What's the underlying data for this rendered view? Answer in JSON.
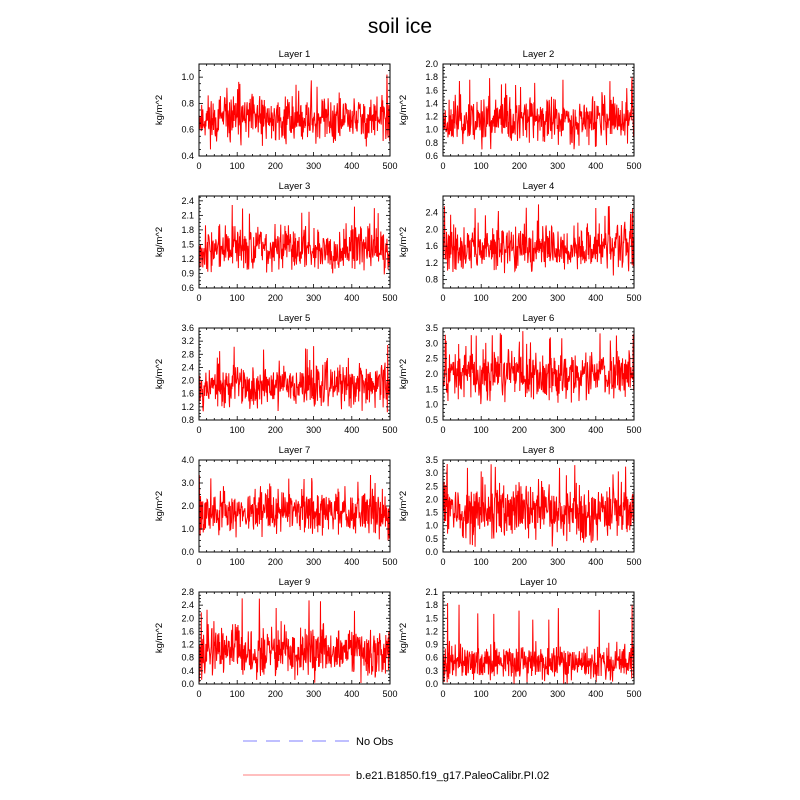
{
  "title": "soil ice",
  "legend": {
    "items": [
      {
        "label": "No Obs",
        "color": "#9999ff",
        "style": "dashed"
      },
      {
        "label": "b.e21.B1850.f19_g17.PaleoCalibr.PI.02",
        "color": "#ff9999",
        "style": "solid"
      }
    ]
  },
  "chart_data": [
    {
      "type": "line",
      "title": "Layer 1",
      "xlabel": "",
      "ylabel": "kg/m^2",
      "xlim": [
        0,
        500
      ],
      "ylim": [
        0.4,
        1.1
      ],
      "xticks": [
        0,
        100,
        200,
        300,
        400,
        500
      ],
      "yticks": [
        "0.4",
        "0.6",
        "0.8",
        "1.0"
      ],
      "series": [
        {
          "name": "b.e21.B1850.f19_g17.PaleoCalibr.PI.02",
          "color": "#ff0000",
          "mean": 0.68,
          "min": 0.45,
          "max": 1.03,
          "n": 500,
          "seed": 11
        }
      ]
    },
    {
      "type": "line",
      "title": "Layer 2",
      "xlabel": "",
      "ylabel": "kg/m^2",
      "xlim": [
        0,
        500
      ],
      "ylim": [
        0.6,
        2.0
      ],
      "xticks": [
        0,
        100,
        200,
        300,
        400,
        500
      ],
      "yticks": [
        "0.6",
        "0.8",
        "1.0",
        "1.2",
        "1.4",
        "1.6",
        "1.8",
        "2.0"
      ],
      "series": [
        {
          "name": "b.e21.B1850.f19_g17.PaleoCalibr.PI.02",
          "color": "#ff0000",
          "mean": 1.15,
          "min": 0.7,
          "max": 1.8,
          "n": 500,
          "seed": 23
        }
      ]
    },
    {
      "type": "line",
      "title": "Layer 3",
      "xlabel": "",
      "ylabel": "kg/m^2",
      "xlim": [
        0,
        500
      ],
      "ylim": [
        0.6,
        2.5
      ],
      "xticks": [
        0,
        100,
        200,
        300,
        400,
        500
      ],
      "yticks": [
        "0.6",
        "0.9",
        "1.2",
        "1.5",
        "1.8",
        "2.1",
        "2.4"
      ],
      "series": [
        {
          "name": "b.e21.B1850.f19_g17.PaleoCalibr.PI.02",
          "color": "#ff0000",
          "mean": 1.42,
          "min": 0.85,
          "max": 2.35,
          "n": 500,
          "seed": 37
        }
      ]
    },
    {
      "type": "line",
      "title": "Layer 4",
      "xlabel": "",
      "ylabel": "kg/m^2",
      "xlim": [
        0,
        500
      ],
      "ylim": [
        0.6,
        2.8
      ],
      "xticks": [
        0,
        100,
        200,
        300,
        400,
        500
      ],
      "yticks": [
        "0.8",
        "1.2",
        "1.6",
        "2.0",
        "2.4"
      ],
      "series": [
        {
          "name": "b.e21.B1850.f19_g17.PaleoCalibr.PI.02",
          "color": "#ff0000",
          "mean": 1.55,
          "min": 0.9,
          "max": 2.6,
          "n": 500,
          "seed": 41
        }
      ]
    },
    {
      "type": "line",
      "title": "Layer 5",
      "xlabel": "",
      "ylabel": "kg/m^2",
      "xlim": [
        0,
        500
      ],
      "ylim": [
        0.8,
        3.6
      ],
      "xticks": [
        0,
        100,
        200,
        300,
        400,
        500
      ],
      "yticks": [
        "0.8",
        "1.2",
        "1.6",
        "2.0",
        "2.4",
        "2.8",
        "3.2",
        "3.6"
      ],
      "series": [
        {
          "name": "b.e21.B1850.f19_g17.PaleoCalibr.PI.02",
          "color": "#ff0000",
          "mean": 1.85,
          "min": 1.0,
          "max": 3.2,
          "n": 500,
          "seed": 53
        }
      ]
    },
    {
      "type": "line",
      "title": "Layer 6",
      "xlabel": "",
      "ylabel": "kg/m^2",
      "xlim": [
        0,
        500
      ],
      "ylim": [
        0.5,
        3.5
      ],
      "xticks": [
        0,
        100,
        200,
        300,
        400,
        500
      ],
      "yticks": [
        "0.5",
        "1.0",
        "1.5",
        "2.0",
        "2.5",
        "3.0",
        "3.5"
      ],
      "series": [
        {
          "name": "b.e21.B1850.f19_g17.PaleoCalibr.PI.02",
          "color": "#ff0000",
          "mean": 2.0,
          "min": 1.0,
          "max": 3.4,
          "n": 500,
          "seed": 67
        }
      ]
    },
    {
      "type": "line",
      "title": "Layer 7",
      "xlabel": "",
      "ylabel": "kg/m^2",
      "xlim": [
        0,
        500
      ],
      "ylim": [
        0.0,
        4.0
      ],
      "xticks": [
        0,
        100,
        200,
        300,
        400,
        500
      ],
      "yticks": [
        "0.0",
        "1.0",
        "2.0",
        "3.0",
        "4.0"
      ],
      "series": [
        {
          "name": "b.e21.B1850.f19_g17.PaleoCalibr.PI.02",
          "color": "#ff0000",
          "mean": 1.75,
          "min": 0.5,
          "max": 3.5,
          "n": 500,
          "seed": 79
        }
      ]
    },
    {
      "type": "line",
      "title": "Layer 8",
      "xlabel": "",
      "ylabel": "kg/m^2",
      "xlim": [
        0,
        500
      ],
      "ylim": [
        0.0,
        3.5
      ],
      "xticks": [
        0,
        100,
        200,
        300,
        400,
        500
      ],
      "yticks": [
        "0.0",
        "0.5",
        "1.0",
        "1.5",
        "2.0",
        "2.5",
        "3.0",
        "3.5"
      ],
      "series": [
        {
          "name": "b.e21.B1850.f19_g17.PaleoCalibr.PI.02",
          "color": "#ff0000",
          "mean": 1.55,
          "min": 0.2,
          "max": 3.4,
          "n": 500,
          "seed": 83
        }
      ]
    },
    {
      "type": "line",
      "title": "Layer 9",
      "xlabel": "",
      "ylabel": "kg/m^2",
      "xlim": [
        0,
        500
      ],
      "ylim": [
        0.0,
        2.8
      ],
      "xticks": [
        0,
        100,
        200,
        300,
        400,
        500
      ],
      "yticks": [
        "0.0",
        "0.4",
        "0.8",
        "1.2",
        "1.6",
        "2.0",
        "2.4",
        "2.8"
      ],
      "series": [
        {
          "name": "b.e21.B1850.f19_g17.PaleoCalibr.PI.02",
          "color": "#ff0000",
          "mean": 0.95,
          "min": 0.0,
          "max": 2.7,
          "n": 500,
          "seed": 97
        }
      ]
    },
    {
      "type": "line",
      "title": "Layer 10",
      "xlabel": "",
      "ylabel": "kg/m^2",
      "xlim": [
        0,
        500
      ],
      "ylim": [
        0.0,
        2.1
      ],
      "xticks": [
        0,
        100,
        200,
        300,
        400,
        500
      ],
      "yticks": [
        "0.0",
        "0.3",
        "0.6",
        "0.9",
        "1.2",
        "1.5",
        "1.8",
        "2.1"
      ],
      "series": [
        {
          "name": "b.e21.B1850.f19_g17.PaleoCalibr.PI.02",
          "color": "#ff0000",
          "mean": 0.5,
          "min": 0.0,
          "max": 1.85,
          "n": 500,
          "seed": 101
        }
      ]
    }
  ]
}
